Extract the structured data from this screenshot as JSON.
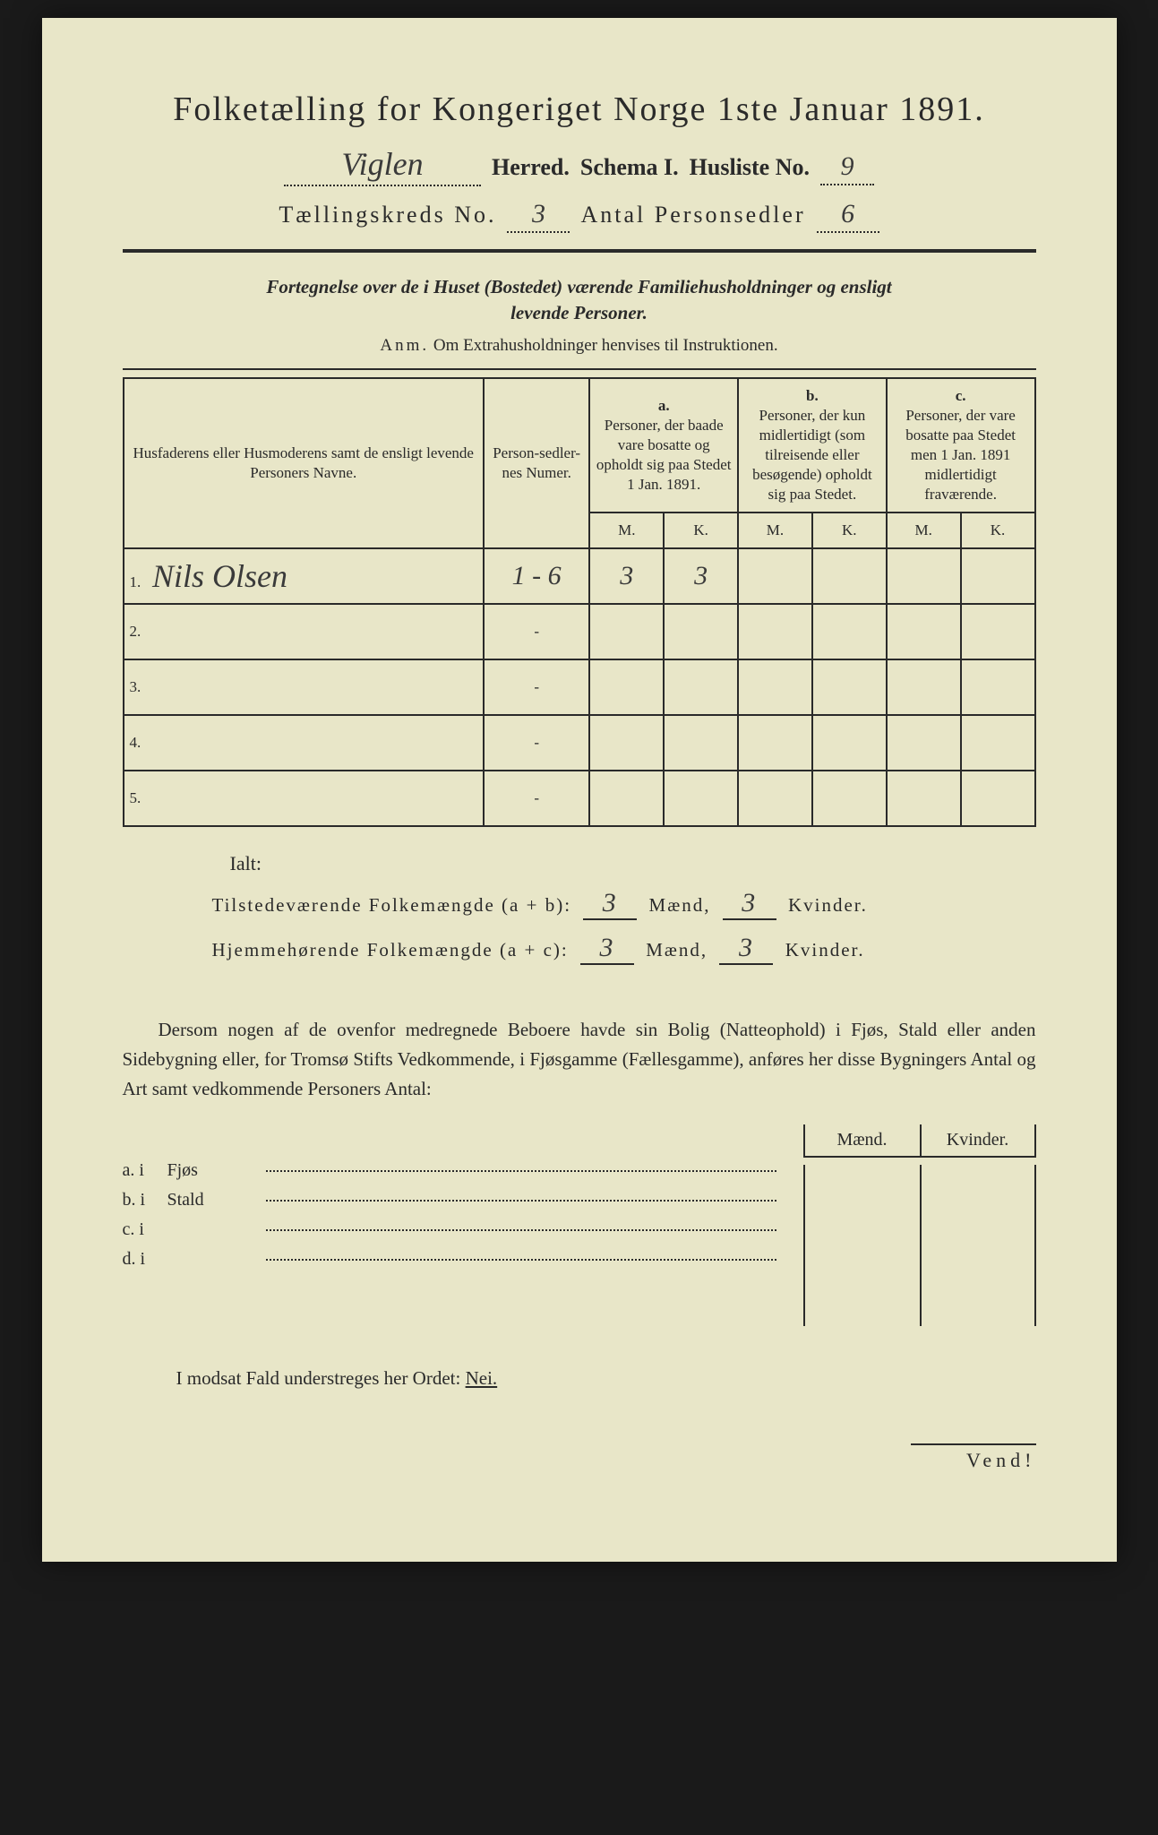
{
  "title": "Folketælling for Kongeriget Norge 1ste Januar 1891.",
  "header": {
    "herred_value": "Viglen",
    "herred_label": "Herred.",
    "schema_label": "Schema I.",
    "husliste_label": "Husliste No.",
    "husliste_value": "9",
    "kreds_label": "Tællingskreds No.",
    "kreds_value": "3",
    "antal_label": "Antal Personsedler",
    "antal_value": "6"
  },
  "fortegnelse": {
    "line1": "Fortegnelse over de i Huset (Bostedet) værende Familiehusholdninger og ensligt",
    "line2": "levende Personer.",
    "anm_label": "Anm.",
    "anm_text": "Om Extrahusholdninger henvises til Instruktionen."
  },
  "table": {
    "head_name": "Husfaderens eller Husmoderens samt de ensligt levende Personers Navne.",
    "head_num": "Person-sedler-nes Numer.",
    "head_a_label": "a.",
    "head_a": "Personer, der baade vare bosatte og opholdt sig paa Stedet 1 Jan. 1891.",
    "head_b_label": "b.",
    "head_b": "Personer, der kun midlertidigt (som tilreisende eller besøgende) opholdt sig paa Stedet.",
    "head_c_label": "c.",
    "head_c": "Personer, der vare bosatte paa Stedet men 1 Jan. 1891 midlertidigt fraværende.",
    "m": "M.",
    "k": "K.",
    "rows": [
      {
        "n": "1.",
        "name": "Nils Olsen",
        "num": "1 - 6",
        "am": "3",
        "ak": "3",
        "bm": "",
        "bk": "",
        "cm": "",
        "ck": ""
      },
      {
        "n": "2.",
        "name": "",
        "num": "-",
        "am": "",
        "ak": "",
        "bm": "",
        "bk": "",
        "cm": "",
        "ck": ""
      },
      {
        "n": "3.",
        "name": "",
        "num": "-",
        "am": "",
        "ak": "",
        "bm": "",
        "bk": "",
        "cm": "",
        "ck": ""
      },
      {
        "n": "4.",
        "name": "",
        "num": "-",
        "am": "",
        "ak": "",
        "bm": "",
        "bk": "",
        "cm": "",
        "ck": ""
      },
      {
        "n": "5.",
        "name": "",
        "num": "-",
        "am": "",
        "ak": "",
        "bm": "",
        "bk": "",
        "cm": "",
        "ck": ""
      }
    ]
  },
  "totals": {
    "ialt": "Ialt:",
    "line1_label": "Tilstedeværende Folkemængde (a + b):",
    "line1_m": "3",
    "line1_k": "3",
    "line2_label": "Hjemmehørende Folkemængde (a + c):",
    "line2_m": "3",
    "line2_k": "3",
    "maend": "Mænd,",
    "kvinder": "Kvinder."
  },
  "dersom": "Dersom nogen af de ovenfor medregnede Beboere havde sin Bolig (Natteophold) i Fjøs, Stald eller anden Sidebygning eller, for Tromsø Stifts Vedkommende, i Fjøsgamme (Fællesgamme), anføres her disse Bygningers Antal og Art samt vedkommende Personers Antal:",
  "outbuildings": {
    "maend": "Mænd.",
    "kvinder": "Kvinder.",
    "rows": [
      {
        "label": "a.  i",
        "type": "Fjøs"
      },
      {
        "label": "b.  i",
        "type": "Stald"
      },
      {
        "label": "c.  i",
        "type": ""
      },
      {
        "label": "d.  i",
        "type": ""
      }
    ]
  },
  "modsat": {
    "text": "I modsat Fald understreges her Ordet: ",
    "nei": "Nei."
  },
  "vend": "Vend!",
  "colors": {
    "paper": "#e8e6c8",
    "ink": "#2a2a2a",
    "hand": "#3a3a3a",
    "bg": "#1a1a1a"
  }
}
